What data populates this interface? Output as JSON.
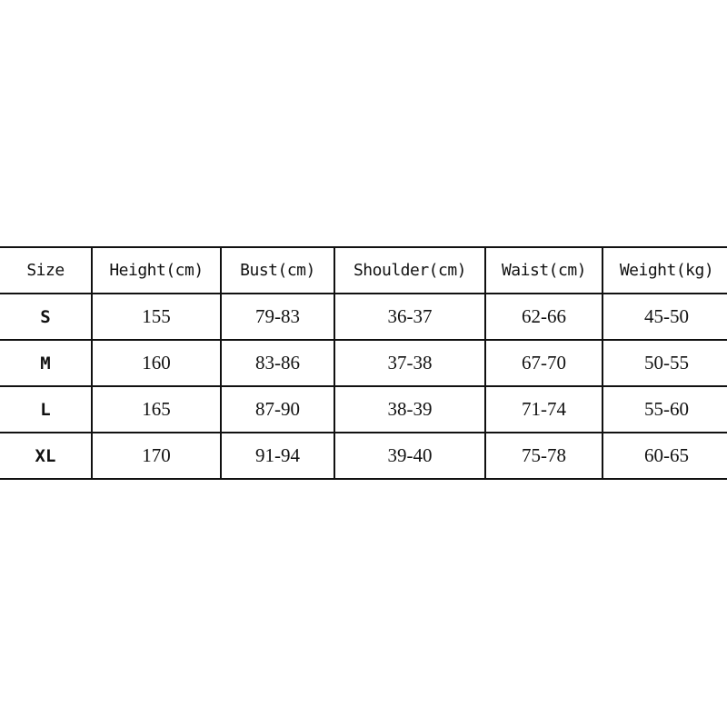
{
  "table": {
    "headers": [
      "Size",
      "Height(cm)",
      "Bust(cm)",
      "Shoulder(cm)",
      "Waist(cm)",
      "Weight(kg)"
    ],
    "rows": [
      [
        "S",
        "155",
        "79-83",
        "36-37",
        "62-66",
        "45-50"
      ],
      [
        "M",
        "160",
        "83-86",
        "37-38",
        "67-70",
        "50-55"
      ],
      [
        "L",
        "165",
        "87-90",
        "38-39",
        "71-74",
        "55-60"
      ],
      [
        "XL",
        "170",
        "91-94",
        "39-40",
        "75-78",
        "60-65"
      ]
    ]
  }
}
